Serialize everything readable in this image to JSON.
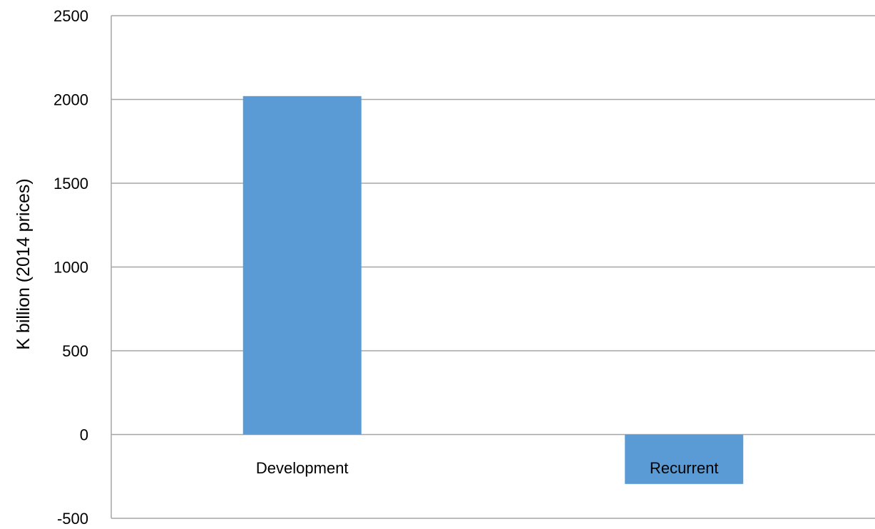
{
  "chart_data": {
    "type": "bar",
    "title": "",
    "xlabel": "",
    "ylabel": "K billion (2014 prices)",
    "categories": [
      "Development",
      "Recurrent"
    ],
    "values": [
      2020,
      -295
    ],
    "ylim": [
      -500,
      2500
    ],
    "yticks": [
      2500,
      2000,
      1500,
      1000,
      500,
      0,
      -500
    ],
    "ytick_labels": [
      "2500",
      "2000",
      "1500",
      "1000",
      "500",
      "0",
      "-500"
    ],
    "grid": true,
    "legend": "none",
    "bar_color": "#5b9bd5",
    "grid_color": "#a6a6a6"
  }
}
